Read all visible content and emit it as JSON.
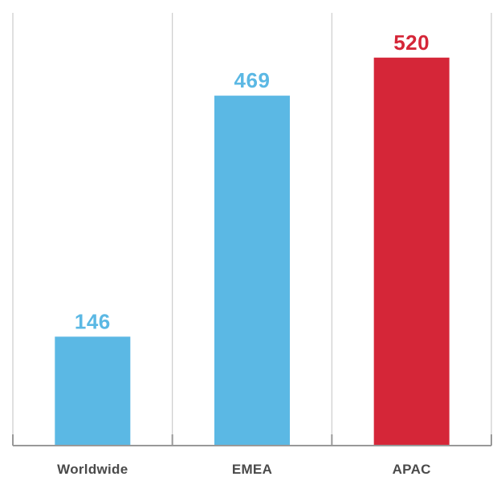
{
  "chart_data": {
    "type": "bar",
    "categories": [
      "Worldwide",
      "EMEA",
      "APAC"
    ],
    "values": [
      146,
      469,
      520
    ],
    "value_labels": [
      "146",
      "469",
      "520"
    ],
    "ylim": [
      0,
      580
    ],
    "grid": "vertical",
    "legend": "none",
    "colors": {
      "default_bar": "#5bb8e4",
      "highlight_bar": "#d52638",
      "axis": "#999999",
      "grid": "#cccccc",
      "category_text": "#4a4a4a"
    },
    "bar_colors": [
      "#5bb8e4",
      "#5bb8e4",
      "#d52638"
    ]
  }
}
